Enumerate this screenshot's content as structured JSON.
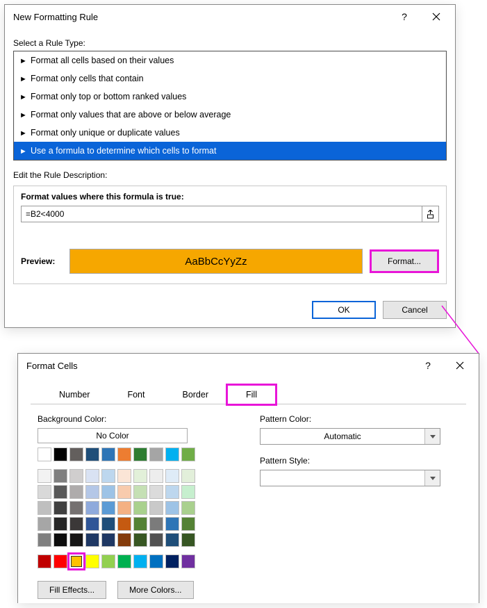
{
  "dlg1": {
    "title": "New Formatting Rule",
    "select_rule_label": "Select a Rule Type:",
    "rule_types": [
      "Format all cells based on their values",
      "Format only cells that contain",
      "Format only top or bottom ranked values",
      "Format only values that are above or below average",
      "Format only unique or duplicate values",
      "Use a formula to determine which cells to format"
    ],
    "selected_rule_index": 5,
    "edit_desc_label": "Edit the Rule Description:",
    "formula_label": "Format values where this formula is true:",
    "formula_value": "=B2<4000",
    "preview_label": "Preview:",
    "preview_text": "AaBbCcYyZz",
    "preview_bg": "#f6a700",
    "format_btn": "Format...",
    "ok_btn": "OK",
    "cancel_btn": "Cancel"
  },
  "dlg2": {
    "title": "Format Cells",
    "tabs": [
      "Number",
      "Font",
      "Border",
      "Fill"
    ],
    "active_tab_index": 3,
    "bg_color_label": "Background Color:",
    "no_color": "No Color",
    "theme_row1": [
      "#ffffff",
      "#000000",
      "#635f5d",
      "#1f4e79",
      "#2e75b6",
      "#ed7d31",
      "#2e7d32",
      "#a5a5a5",
      "#00b0f0",
      "#70ad47"
    ],
    "tints": [
      [
        "#f2f2f2",
        "#7f7f7f",
        "#d0cece",
        "#d9e2f3",
        "#bdd7ee",
        "#fbe5d6",
        "#e2f0d9",
        "#ededed",
        "#deebf7",
        "#e2efda"
      ],
      [
        "#d9d9d9",
        "#595959",
        "#aeabab",
        "#b4c7e7",
        "#9dc3e6",
        "#f8cbad",
        "#c5e0b4",
        "#dbdbdb",
        "#bdd7ee",
        "#c6efce"
      ],
      [
        "#bfbfbf",
        "#404040",
        "#757171",
        "#8faadc",
        "#5b9bd5",
        "#f4b183",
        "#a9d18e",
        "#c9c9c9",
        "#9dc3e6",
        "#a9d08e"
      ],
      [
        "#a6a6a6",
        "#262626",
        "#3b3838",
        "#2f5597",
        "#1f4e79",
        "#c55a11",
        "#548235",
        "#7b7b7b",
        "#2e75b6",
        "#548235"
      ],
      [
        "#808080",
        "#0d0d0d",
        "#171616",
        "#1f3864",
        "#1f3864",
        "#843c0c",
        "#385723",
        "#525252",
        "#1f4e79",
        "#375623"
      ]
    ],
    "std_row": [
      "#c00000",
      "#ff0000",
      "#ffc000",
      "#ffff00",
      "#92d050",
      "#00b050",
      "#00b0f0",
      "#0070c0",
      "#002060",
      "#7030a0"
    ],
    "selected_color": "#ffc000",
    "fill_effects_btn": "Fill Effects...",
    "more_colors_btn": "More Colors...",
    "pattern_color_label": "Pattern Color:",
    "pattern_color_value": "Automatic",
    "pattern_style_label": "Pattern Style:"
  },
  "highlight_color": "#e815d8"
}
